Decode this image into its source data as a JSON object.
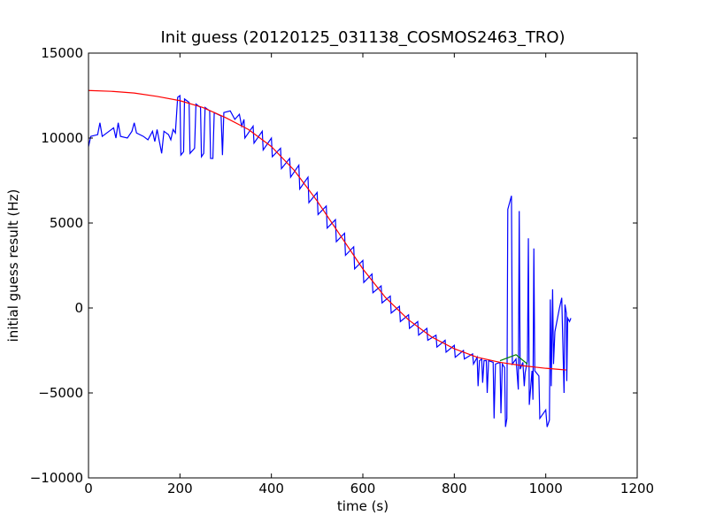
{
  "chart_data": {
    "type": "line",
    "title": "Init guess (20120125_031138_COSMOS2463_TRO)",
    "xlabel": "time (s)",
    "ylabel": "initial guess result (Hz)",
    "xlim": [
      0,
      1200
    ],
    "ylim": [
      -10000,
      15000
    ],
    "xticks": [
      0,
      200,
      400,
      600,
      800,
      1000,
      1200
    ],
    "yticks": [
      {
        "value": -10000,
        "label": "−10000"
      },
      {
        "value": -5000,
        "label": "−5000"
      },
      0,
      5000,
      10000,
      15000
    ],
    "series": [
      {
        "color": "#0000ff",
        "x": [
          0,
          5,
          20,
          25,
          30,
          45,
          55,
          60,
          65,
          70,
          85,
          95,
          100,
          105,
          120,
          130,
          140,
          145,
          150,
          160,
          165,
          175,
          180,
          185,
          190,
          195,
          200,
          202,
          208,
          210,
          220,
          222,
          232,
          235,
          245,
          247,
          252,
          255,
          265,
          267,
          272,
          275,
          290,
          293,
          296,
          310,
          320,
          330,
          335,
          340,
          342,
          360,
          362,
          380,
          382,
          400,
          402,
          420,
          422,
          440,
          442,
          460,
          462,
          480,
          482,
          500,
          502,
          520,
          522,
          540,
          542,
          560,
          562,
          580,
          582,
          600,
          602,
          620,
          622,
          640,
          642,
          660,
          662,
          680,
          682,
          700,
          702,
          720,
          722,
          740,
          742,
          760,
          762,
          780,
          782,
          800,
          802,
          820,
          822,
          840,
          842,
          850,
          852,
          855,
          860,
          862,
          865,
          870,
          872,
          875,
          885,
          887,
          890,
          900,
          902,
          905,
          910,
          912,
          915,
          917,
          925,
          927,
          935,
          940,
          942,
          944,
          950,
          953,
          955,
          960,
          962,
          964,
          970,
          972,
          974,
          976,
          985,
          987,
          1000,
          1003,
          1008,
          1010,
          1012,
          1015,
          1017,
          1020,
          1030,
          1035,
          1040,
          1042,
          1045,
          1046,
          1048,
          1052,
          1055
        ],
        "values": [
          9500,
          10100,
          10200,
          10900,
          10100,
          10400,
          10600,
          10000,
          10900,
          10100,
          10000,
          10400,
          10900,
          10300,
          10100,
          9900,
          10400,
          9800,
          10500,
          9100,
          10400,
          10200,
          9900,
          10500,
          10300,
          12400,
          12500,
          9000,
          9200,
          12300,
          12100,
          9100,
          9400,
          12000,
          11800,
          8900,
          9100,
          11800,
          11600,
          8800,
          8800,
          11500,
          11300,
          9000,
          11500,
          11600,
          11100,
          11400,
          10700,
          11100,
          10000,
          10700,
          9700,
          10400,
          9300,
          10000,
          8900,
          9400,
          8200,
          8800,
          7700,
          8400,
          7000,
          7700,
          6200,
          6800,
          5500,
          6000,
          4700,
          5200,
          3900,
          4400,
          3100,
          3600,
          2300,
          2800,
          1500,
          2000,
          900,
          1300,
          300,
          700,
          -300,
          100,
          -800,
          -400,
          -1200,
          -800,
          -1600,
          -1200,
          -1900,
          -1600,
          -2300,
          -1900,
          -2600,
          -2200,
          -2900,
          -2500,
          -3000,
          -2700,
          -3300,
          -2900,
          -4600,
          -3100,
          -3000,
          -4400,
          -3100,
          -3100,
          -5000,
          -3100,
          -3200,
          -6500,
          -3300,
          -3200,
          -6200,
          -3300,
          -3500,
          -7000,
          -6500,
          5800,
          6600,
          -3300,
          -3000,
          -4800,
          5700,
          -3600,
          -3200,
          -4600,
          -3800,
          -3100,
          4100,
          -5700,
          -3700,
          -5400,
          3500,
          -3700,
          -4000,
          -6500,
          -6000,
          -7000,
          -6600,
          500,
          -4600,
          1100,
          -3300,
          -1400,
          0,
          600,
          -5000,
          200,
          -300,
          -4300,
          -600,
          -800,
          -600
        ]
      },
      {
        "color": "#008000",
        "x": [
          900,
          935,
          960
        ],
        "values": [
          -3100,
          -2750,
          -3300
        ]
      },
      {
        "color": "#ff0000",
        "x": [
          0,
          50,
          100,
          150,
          200,
          250,
          300,
          350,
          400,
          450,
          500,
          550,
          600,
          650,
          700,
          750,
          800,
          850,
          900,
          950,
          1000,
          1045
        ],
        "values": [
          12800,
          12750,
          12650,
          12450,
          12200,
          11800,
          11200,
          10500,
          9500,
          8100,
          6300,
          4300,
          2300,
          600,
          -700,
          -1700,
          -2400,
          -2900,
          -3200,
          -3400,
          -3550,
          -3650
        ]
      }
    ]
  }
}
